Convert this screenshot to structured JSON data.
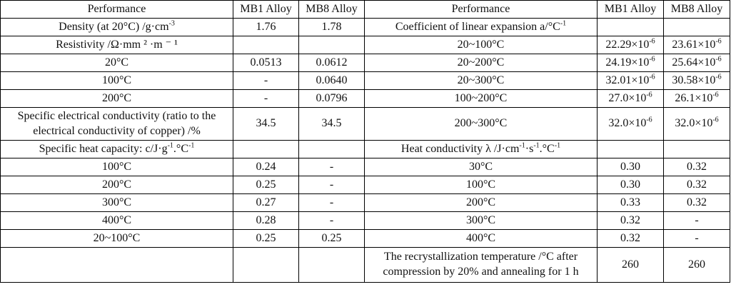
{
  "header": {
    "left_performance": "Performance",
    "left_mb1": "MB1 Alloy",
    "left_mb8": "MB8 Alloy",
    "right_performance": "Performance",
    "right_mb1": "MB1 Alloy",
    "right_mb8": "MB8 Alloy"
  },
  "rows": [
    {
      "l_label": "Density (at 20°C) /g·cm",
      "l_label_sup": "-3",
      "l_mb1": "1.76",
      "l_mb8": "1.78",
      "r_label": "Coefficient of linear expansion a/°C",
      "r_label_sup": "-1",
      "r_mb1": "",
      "r_mb1_sup": "",
      "r_mb8": "",
      "r_mb8_sup": ""
    },
    {
      "l_label": "Resistivity /Ω·mm ² ·m ⁻ ¹",
      "l_label_sup": "",
      "l_mb1": "",
      "l_mb8": "",
      "r_label": "20~100°C",
      "r_label_sup": "",
      "r_mb1": "22.29×10",
      "r_mb1_sup": "-6",
      "r_mb8": "23.61×10",
      "r_mb8_sup": "-6"
    },
    {
      "l_label": "20°C",
      "l_label_sup": "",
      "l_mb1": "0.0513",
      "l_mb8": "0.0612",
      "r_label": "20~200°C",
      "r_label_sup": "",
      "r_mb1": "24.19×10",
      "r_mb1_sup": "-6",
      "r_mb8": "25.64×10",
      "r_mb8_sup": "-6"
    },
    {
      "l_label": "100°C",
      "l_label_sup": "",
      "l_mb1": "-",
      "l_mb8": "0.0640",
      "r_label": "20~300°C",
      "r_label_sup": "",
      "r_mb1": "32.01×10",
      "r_mb1_sup": "-6",
      "r_mb8": "30.58×10",
      "r_mb8_sup": "-6"
    },
    {
      "l_label": "200°C",
      "l_label_sup": "",
      "l_mb1": "-",
      "l_mb8": "0.0796",
      "r_label": "100~200°C",
      "r_label_sup": "",
      "r_mb1": "27.0×10",
      "r_mb1_sup": "-6",
      "r_mb8": "26.1×10",
      "r_mb8_sup": "-6"
    },
    {
      "l_label": "Specific electrical conductivity (ratio to the electrical conductivity of copper) /%",
      "l_label_sup": "",
      "l_mb1": "34.5",
      "l_mb8": "34.5",
      "r_label": "200~300°C",
      "r_label_sup": "",
      "r_mb1": "32.0×10",
      "r_mb1_sup": "-6",
      "r_mb8": "32.0×10",
      "r_mb8_sup": "-6"
    },
    {
      "l_label": "Specific heat capacity: c/J·g",
      "l_label_sup": "-1",
      "l_label_mid": ".°C",
      "l_label_sup2": "-1",
      "l_mb1": "",
      "l_mb8": "",
      "r_label": "Heat conductivity λ /J·cm",
      "r_label_sup": "-1",
      "r_label_mid": "·s",
      "r_label_sup2": "-1",
      "r_label_mid2": ".°C",
      "r_label_sup3": "-1",
      "r_mb1": "",
      "r_mb1_sup": "",
      "r_mb8": "",
      "r_mb8_sup": ""
    },
    {
      "l_label": "100°C",
      "l_label_sup": "",
      "l_mb1": "0.24",
      "l_mb8": "-",
      "r_label": "30°C",
      "r_label_sup": "",
      "r_mb1": "0.30",
      "r_mb1_sup": "",
      "r_mb8": "0.32",
      "r_mb8_sup": ""
    },
    {
      "l_label": "200°C",
      "l_label_sup": "",
      "l_mb1": "0.25",
      "l_mb8": "-",
      "r_label": "100°C",
      "r_label_sup": "",
      "r_mb1": "0.30",
      "r_mb1_sup": "",
      "r_mb8": "0.32",
      "r_mb8_sup": ""
    },
    {
      "l_label": "300°C",
      "l_label_sup": "",
      "l_mb1": "0.27",
      "l_mb8": "-",
      "r_label": "200°C",
      "r_label_sup": "",
      "r_mb1": "0.33",
      "r_mb1_sup": "",
      "r_mb8": "0.32",
      "r_mb8_sup": ""
    },
    {
      "l_label": "400°C",
      "l_label_sup": "",
      "l_mb1": "0.28",
      "l_mb8": "-",
      "r_label": "300°C",
      "r_label_sup": "",
      "r_mb1": "0.32",
      "r_mb1_sup": "",
      "r_mb8": "-",
      "r_mb8_sup": ""
    },
    {
      "l_label": "20~100°C",
      "l_label_sup": "",
      "l_mb1": "0.25",
      "l_mb8": "0.25",
      "r_label": "400°C",
      "r_label_sup": "",
      "r_mb1": "0.32",
      "r_mb1_sup": "",
      "r_mb8": "-",
      "r_mb8_sup": ""
    },
    {
      "l_label": "",
      "l_label_sup": "",
      "l_mb1": "",
      "l_mb8": "",
      "r_label": "The recrystallization temperature /°C after compression by 20% and annealing for 1 h",
      "r_label_sup": "",
      "r_mb1": "260",
      "r_mb1_sup": "",
      "r_mb8": "260",
      "r_mb8_sup": ""
    }
  ]
}
